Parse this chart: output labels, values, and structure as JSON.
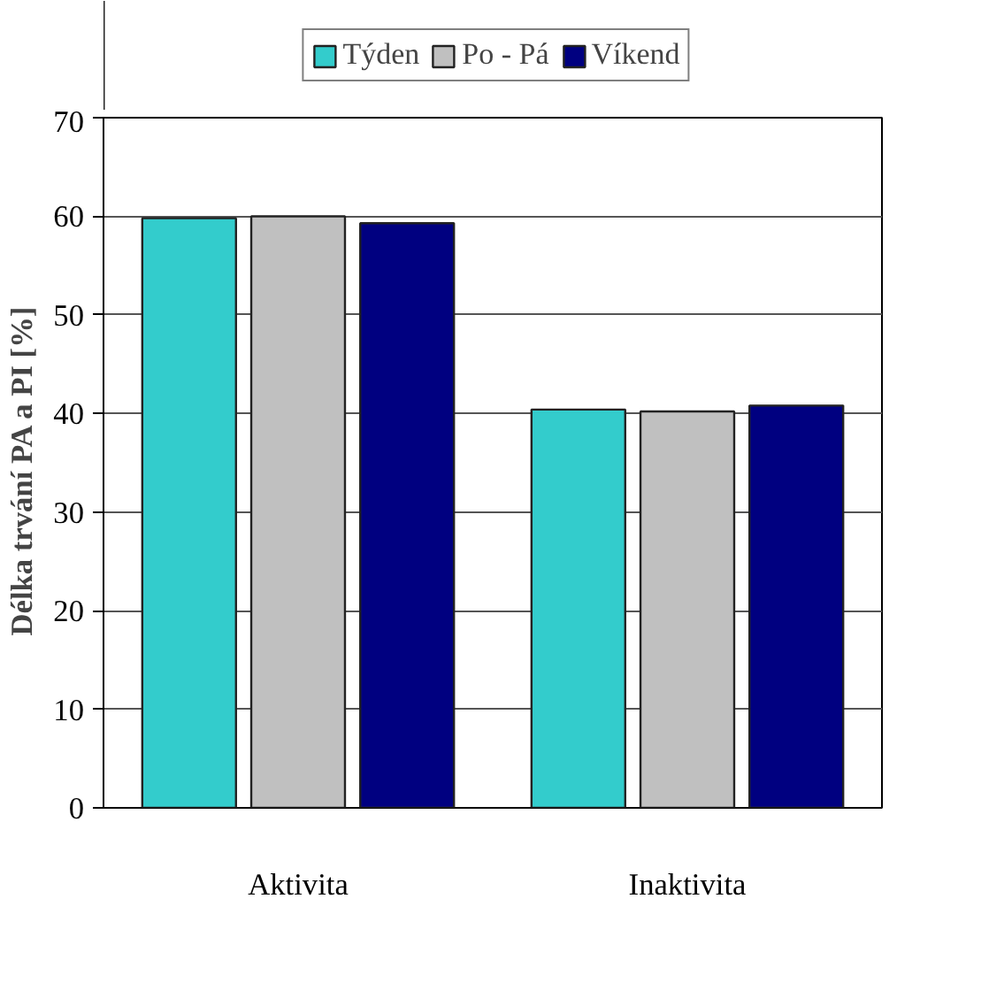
{
  "chart_data": {
    "type": "bar",
    "ylabel": "Délka trvání PA a PI   [%]",
    "categories": [
      "Aktivita",
      "Inaktivita"
    ],
    "series": [
      {
        "name": "Týden",
        "color": "#33cccc",
        "values": [
          59.8,
          40.4
        ]
      },
      {
        "name": "Po - Pá",
        "color": "#c0c0c0",
        "values": [
          60.0,
          40.2
        ]
      },
      {
        "name": "Víkend",
        "color": "#000080",
        "values": [
          59.3,
          40.8
        ]
      }
    ],
    "ylim": [
      0,
      70
    ],
    "yticks": [
      0,
      10,
      20,
      30,
      40,
      50,
      60,
      70
    ],
    "grid": "y",
    "legend": "top"
  }
}
